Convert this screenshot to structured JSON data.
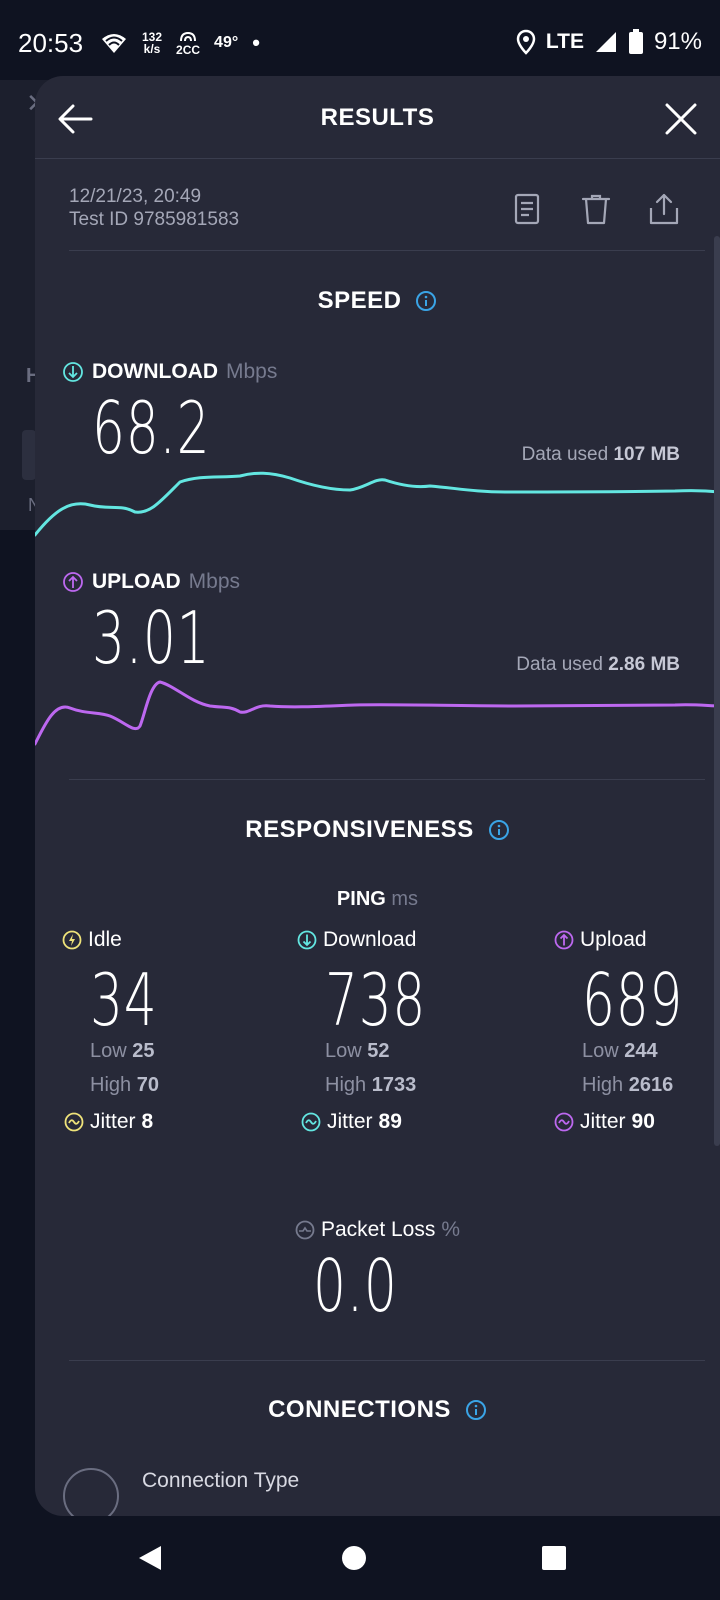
{
  "status_bar": {
    "time": "20:53",
    "speed_value": "132",
    "speed_unit": "k/s",
    "hotspot_label": "2CC",
    "temperature": "49°",
    "network": "LTE",
    "battery": "91%"
  },
  "header": {
    "title": "RESULTS"
  },
  "test": {
    "date": "12/21/23, 20:49",
    "id": "Test ID 9785981583"
  },
  "speed": {
    "title": "SPEED",
    "download": {
      "label": "DOWNLOAD",
      "unit": "Mbps",
      "value": "68.2",
      "data_used_label": "Data used",
      "data_used_value": "107 MB",
      "color": "#63e6e1"
    },
    "upload": {
      "label": "UPLOAD",
      "unit": "Mbps",
      "value": "3.01",
      "data_used_label": "Data used",
      "data_used_value": "2.86 MB",
      "color": "#bd68f0"
    }
  },
  "responsiveness": {
    "title": "RESPONSIVENESS",
    "ping_label": "PING",
    "ping_unit": "ms",
    "low_label": "Low",
    "high_label": "High",
    "jitter_label": "Jitter",
    "idle": {
      "label": "Idle",
      "value": "34",
      "low": "25",
      "high": "70",
      "jitter": "8",
      "color": "#efe37a"
    },
    "download": {
      "label": "Download",
      "value": "738",
      "low": "52",
      "high": "1733",
      "jitter": "89",
      "color": "#63e6e1"
    },
    "upload": {
      "label": "Upload",
      "value": "689",
      "low": "244",
      "high": "2616",
      "jitter": "90",
      "color": "#bd68f0"
    },
    "packet_loss": {
      "label": "Packet Loss",
      "unit": "%",
      "value": "0.0"
    }
  },
  "connections": {
    "title": "CONNECTIONS",
    "connection_type_label": "Connection Type"
  },
  "accent_color": "#3aa4e6"
}
